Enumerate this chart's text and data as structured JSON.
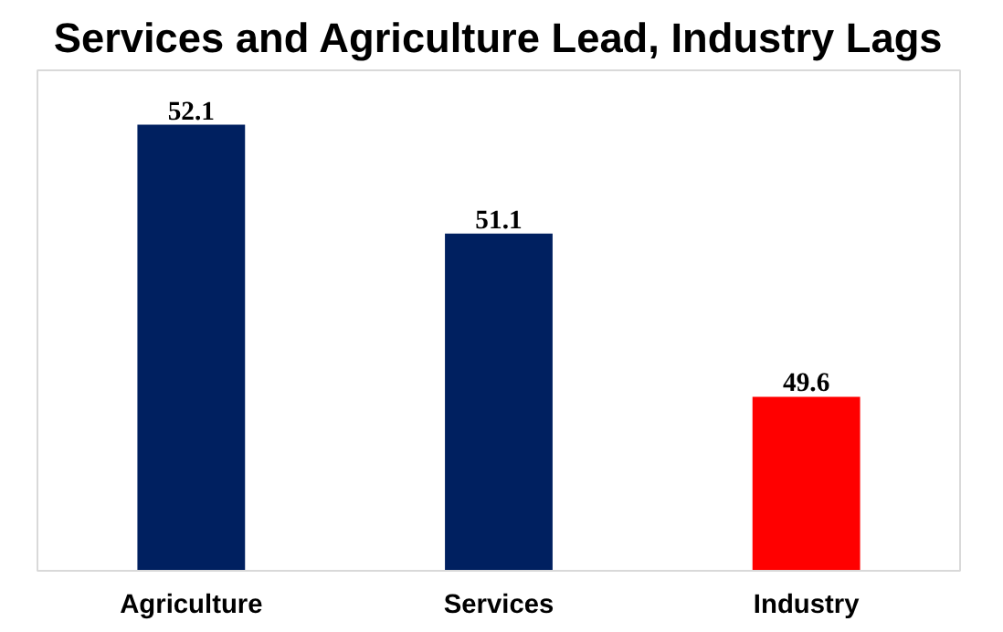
{
  "chart_data": {
    "type": "bar",
    "title": "Services and Agriculture Lead, Industry Lags",
    "categories": [
      "Agriculture",
      "Services",
      "Industry"
    ],
    "values": [
      52.1,
      51.1,
      49.6
    ],
    "colors": [
      "#002060",
      "#002060",
      "#ff0000"
    ],
    "ylim": [
      48,
      52.6
    ],
    "data_labels": true,
    "grid": false
  }
}
